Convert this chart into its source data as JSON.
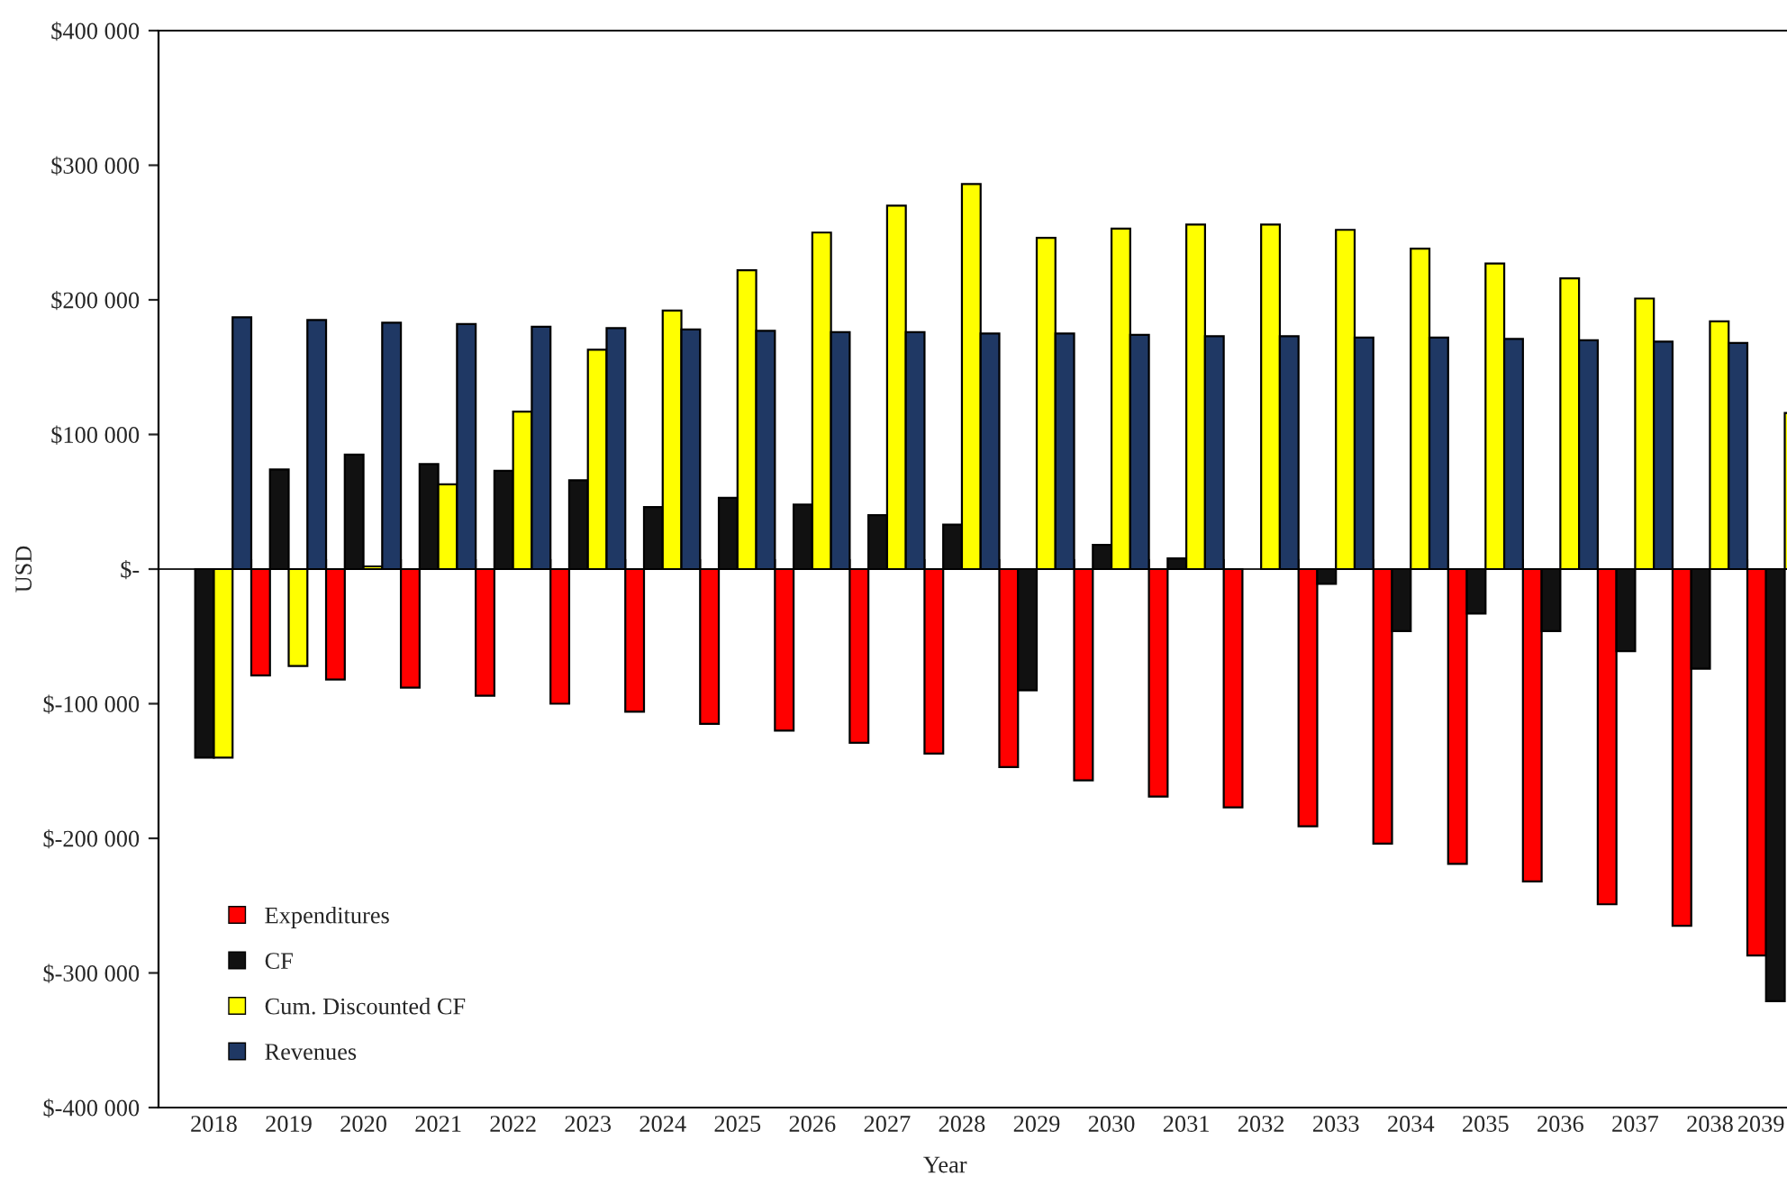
{
  "chart_data": {
    "type": "bar",
    "xlabel": "Year",
    "ylabel": "USD",
    "categories": [
      "2018",
      "2019",
      "2020",
      "2021",
      "2022",
      "2023",
      "2024",
      "2025",
      "2026",
      "2027",
      "2028",
      "2029",
      "2030",
      "2031",
      "2032",
      "2033",
      "2034",
      "2035",
      "2036",
      "2037",
      "2038",
      "2039"
    ],
    "series": [
      {
        "name": "Expenditures",
        "color": "#ff0000",
        "values": [
          null,
          -79000,
          -82000,
          -88000,
          -94000,
          -100000,
          -106000,
          -115000,
          -120000,
          -129000,
          -137000,
          -147000,
          -157000,
          -169000,
          -177000,
          -191000,
          -204000,
          -219000,
          -232000,
          -249000,
          -265000,
          -287000
        ]
      },
      {
        "name": "CF",
        "color": "#111111",
        "values": [
          -140000,
          74000,
          85000,
          78000,
          73000,
          66000,
          46000,
          53000,
          48000,
          40000,
          33000,
          -90000,
          18000,
          8000,
          null,
          -11000,
          -46000,
          -33000,
          -46000,
          -61000,
          -74000,
          -321000
        ]
      },
      {
        "name": "Cum. Discounted CF",
        "color": "#ffff00",
        "values": [
          -140000,
          -72000,
          2000,
          63000,
          117000,
          163000,
          192000,
          222000,
          250000,
          270000,
          286000,
          246000,
          253000,
          256000,
          256000,
          252000,
          238000,
          227000,
          216000,
          201000,
          184000,
          116000
        ]
      },
      {
        "name": "Revenues",
        "color": "#1f3864",
        "values": [
          187000,
          185000,
          183000,
          182000,
          180000,
          179000,
          178000,
          177000,
          176000,
          176000,
          175000,
          175000,
          174000,
          173000,
          173000,
          172000,
          172000,
          171000,
          170000,
          169000,
          168000,
          null
        ]
      }
    ],
    "ylim": [
      -400000,
      400000
    ],
    "yticks": [
      {
        "value": -400000,
        "label": "$-400 000"
      },
      {
        "value": -300000,
        "label": "$-300 000"
      },
      {
        "value": -200000,
        "label": "$-200 000"
      },
      {
        "value": -100000,
        "label": "$-100 000"
      },
      {
        "value": 0,
        "label": "$-"
      },
      {
        "value": 100000,
        "label": "$100 000"
      },
      {
        "value": 200000,
        "label": "$200 000"
      },
      {
        "value": 300000,
        "label": "$300 000"
      },
      {
        "value": 400000,
        "label": "$400 000"
      }
    ],
    "legend": "bottom left"
  }
}
